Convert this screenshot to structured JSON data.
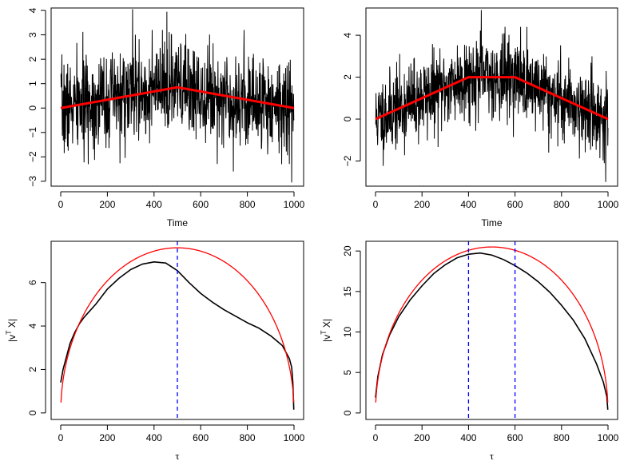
{
  "chart_data": [
    {
      "id": "top-left",
      "type": "line",
      "xlabel": "Time",
      "ylabel": "",
      "xlim": [
        0,
        1000
      ],
      "ylim": [
        -3.2,
        4.1
      ],
      "xticks": [
        0,
        200,
        400,
        600,
        800,
        1000
      ],
      "yticks": [
        -3,
        -2,
        -1,
        0,
        1,
        2,
        3,
        4
      ],
      "series": [
        {
          "kind": "noise",
          "color": "#000000",
          "n": 1000,
          "sd": 0.95,
          "seed": 7,
          "spikes": [
            [
              308,
              4.05
            ],
            [
              455,
              3.95
            ],
            [
              990,
              -3.05
            ],
            [
              740,
              -2.6
            ]
          ]
        },
        {
          "kind": "trend",
          "color": "#ff0000",
          "x": [
            0,
            500,
            1000
          ],
          "y": [
            0.0,
            0.85,
            0.0
          ]
        }
      ],
      "vlines": []
    },
    {
      "id": "top-right",
      "type": "line",
      "xlabel": "Time",
      "ylabel": "",
      "xlim": [
        0,
        1000
      ],
      "ylim": [
        -3.2,
        5.3
      ],
      "xticks": [
        0,
        200,
        400,
        600,
        800,
        1000
      ],
      "yticks": [
        -2,
        0,
        2,
        4
      ],
      "series": [
        {
          "kind": "noise",
          "color": "#000000",
          "n": 1000,
          "sd": 0.95,
          "seed": 11,
          "spikes": [
            [
              455,
              5.2
            ],
            [
              990,
              -3.0
            ],
            [
              745,
              -1.6
            ]
          ]
        },
        {
          "kind": "trend",
          "color": "#ff0000",
          "x": [
            0,
            400,
            600,
            1000
          ],
          "y": [
            0.0,
            2.0,
            2.0,
            0.0
          ]
        }
      ],
      "vlines": []
    },
    {
      "id": "bottom-left",
      "type": "line",
      "xlabel": "τ",
      "ylabel": "|v^T X|",
      "xlim": [
        0,
        1000
      ],
      "ylim": [
        -0.3,
        7.9
      ],
      "xticks": [
        0,
        200,
        400,
        600,
        800,
        1000
      ],
      "yticks": [
        0,
        2,
        4,
        6
      ],
      "series": [
        {
          "kind": "points",
          "color": "#000000",
          "x": [
            0,
            10,
            20,
            40,
            60,
            80,
            100,
            150,
            200,
            250,
            300,
            350,
            400,
            450,
            500,
            550,
            600,
            650,
            700,
            750,
            800,
            850,
            900,
            950,
            980,
            990,
            995,
            999
          ],
          "y": [
            1.4,
            2.0,
            2.4,
            3.2,
            3.7,
            4.1,
            4.4,
            5.0,
            5.7,
            6.2,
            6.6,
            6.85,
            6.95,
            6.9,
            6.55,
            6.0,
            5.5,
            5.1,
            4.75,
            4.45,
            4.15,
            3.9,
            3.55,
            3.1,
            2.5,
            2.1,
            1.4,
            0.15
          ]
        },
        {
          "kind": "sqrtcurve",
          "color": "#ff0000",
          "peak": 7.6,
          "split": 500
        }
      ],
      "vlines": [
        500
      ]
    },
    {
      "id": "bottom-right",
      "type": "line",
      "xlabel": "τ",
      "ylabel": "|v^T X|",
      "xlim": [
        0,
        1000
      ],
      "ylim": [
        -0.8,
        21.2
      ],
      "xticks": [
        0,
        200,
        400,
        600,
        800,
        1000
      ],
      "yticks": [
        0,
        5,
        10,
        15,
        20
      ],
      "series": [
        {
          "kind": "points",
          "color": "#000000",
          "x": [
            0,
            10,
            30,
            60,
            100,
            150,
            200,
            250,
            300,
            350,
            400,
            450,
            500,
            550,
            600,
            650,
            700,
            750,
            800,
            850,
            900,
            950,
            980,
            995,
            999
          ],
          "y": [
            1.9,
            4.5,
            7.2,
            9.6,
            11.9,
            14.0,
            15.7,
            17.2,
            18.3,
            19.15,
            19.6,
            19.75,
            19.5,
            18.95,
            18.2,
            17.3,
            16.2,
            14.9,
            13.3,
            11.5,
            9.2,
            6.1,
            3.8,
            2.0,
            0.4
          ]
        },
        {
          "kind": "sqrtcurve",
          "color": "#ff0000",
          "peak": 20.5,
          "split": 500
        }
      ],
      "vlines": [
        400,
        600
      ]
    }
  ]
}
